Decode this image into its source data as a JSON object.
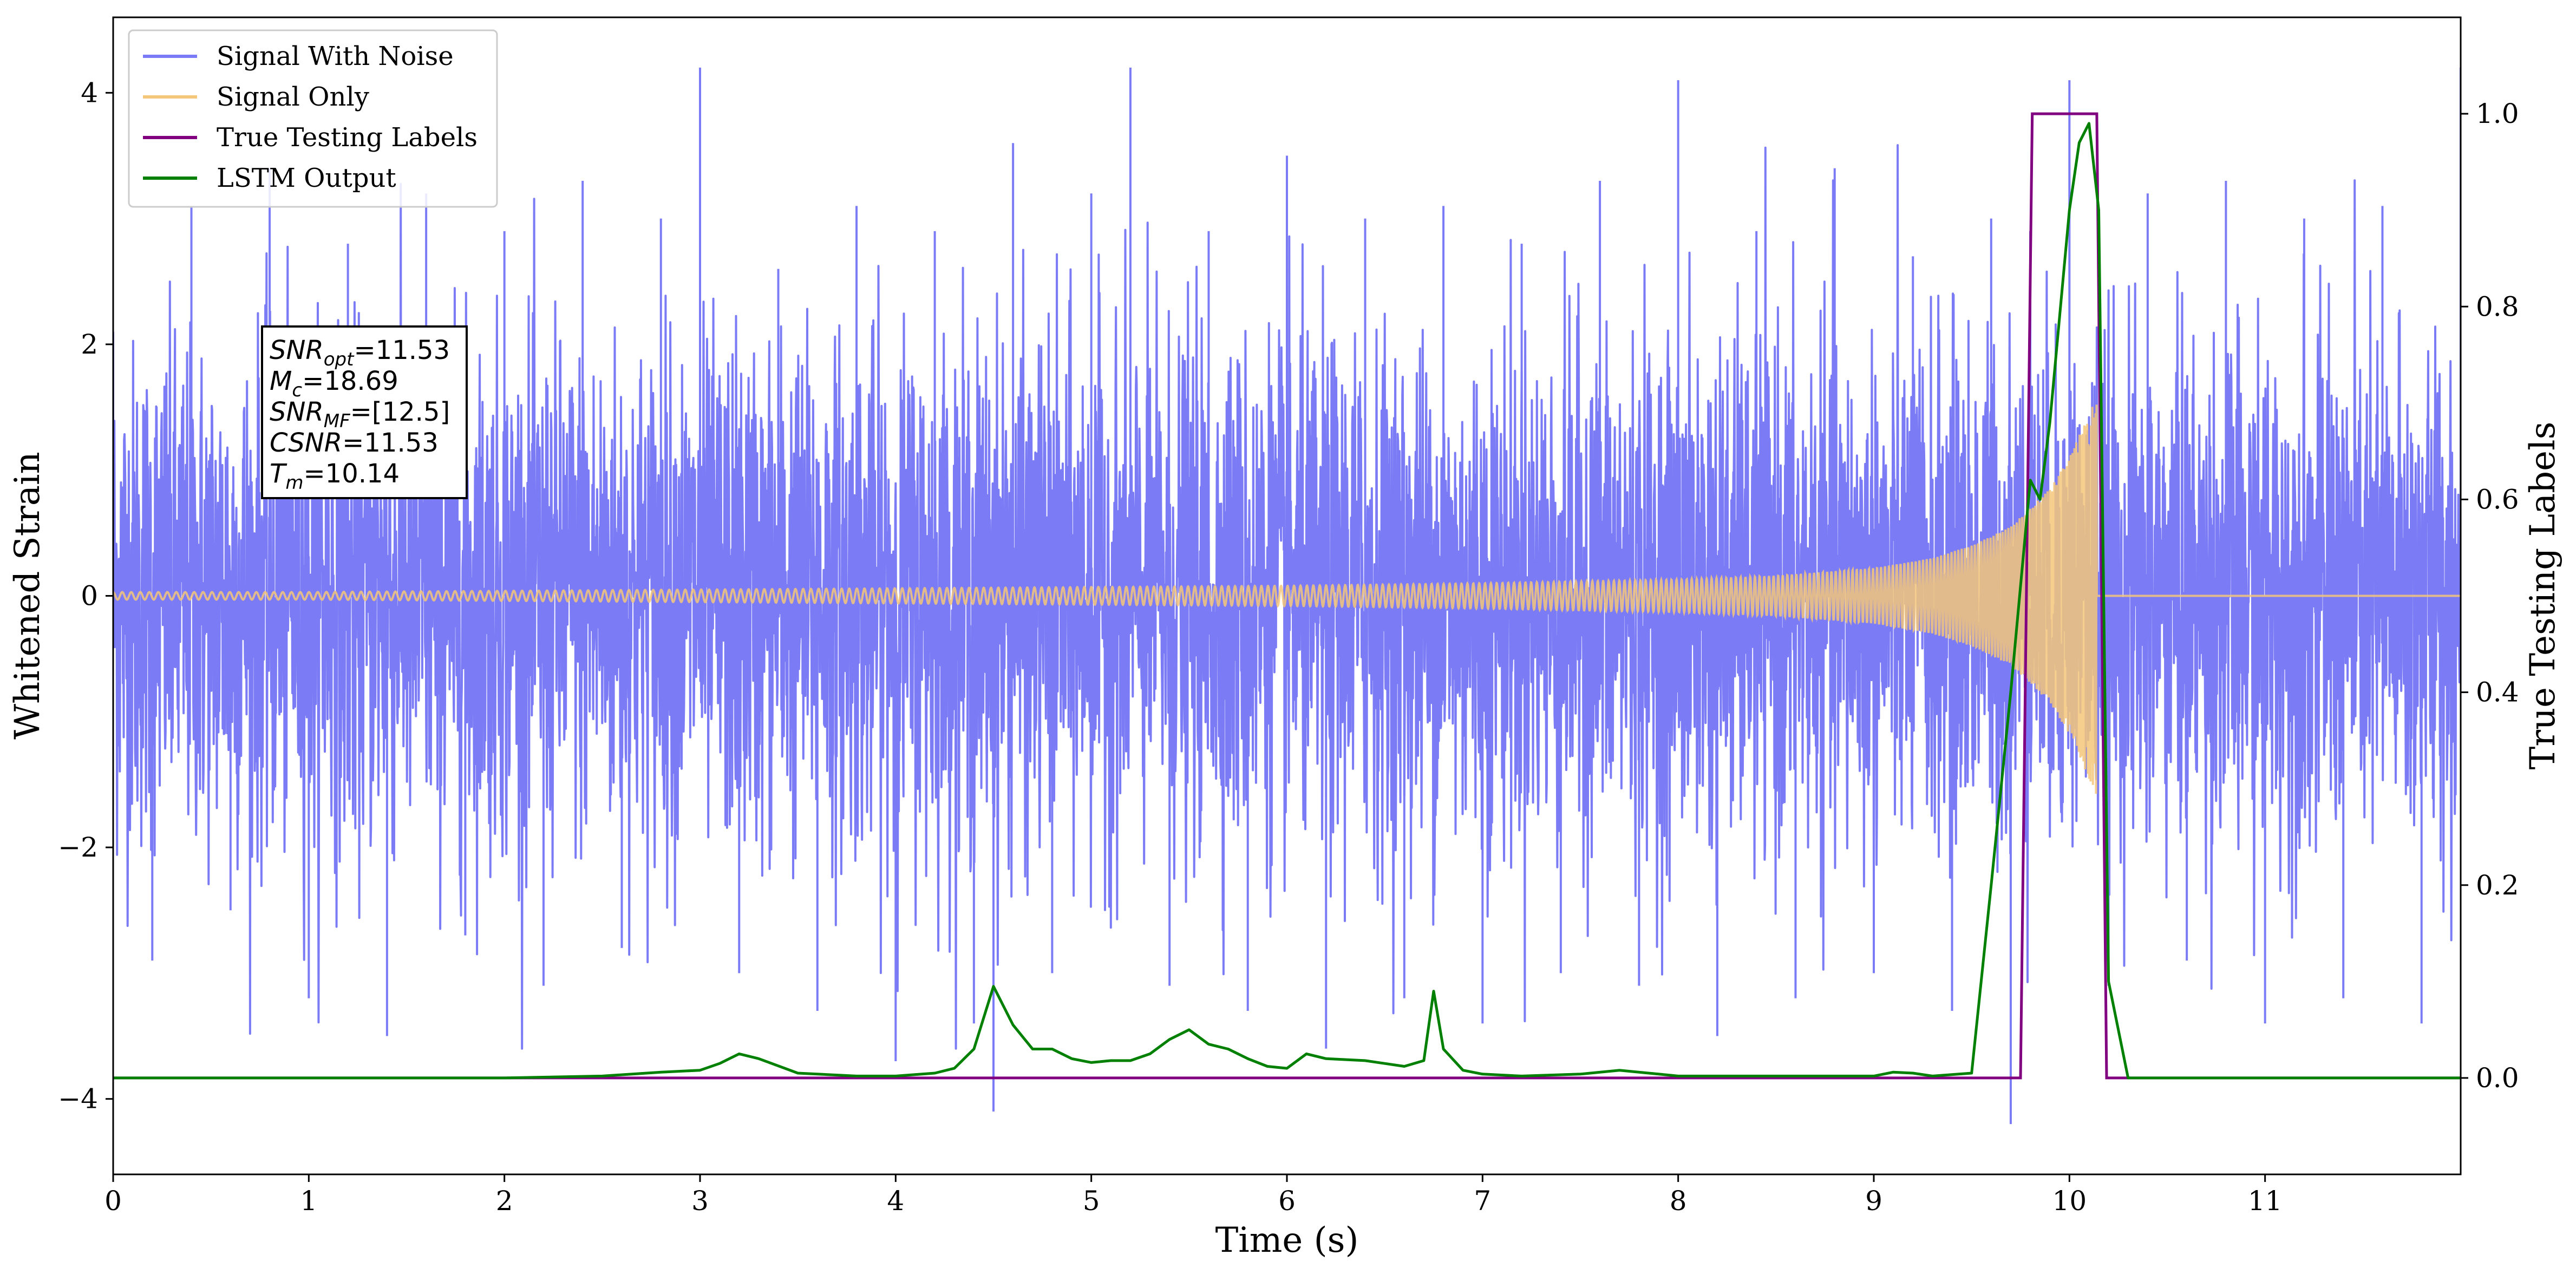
{
  "chart_data": {
    "type": "line",
    "xlabel": "Time (s)",
    "ylabel": "Whitened Strain",
    "y2label": "True Testing Labels",
    "xlim": [
      0,
      12
    ],
    "ylim": [
      -4.6,
      4.6
    ],
    "y2lim": [
      -0.1,
      1.1
    ],
    "x_ticks": [
      "0",
      "1",
      "2",
      "3",
      "4",
      "5",
      "6",
      "7",
      "8",
      "9",
      "10",
      "11"
    ],
    "y_ticks": [
      "−4",
      "−2",
      "0",
      "2",
      "4"
    ],
    "y2_ticks": [
      "0.0",
      "0.2",
      "0.4",
      "0.6",
      "0.8",
      "1.0"
    ],
    "grid": false,
    "legend_position": "top-left",
    "series": [
      {
        "name": "Signal With Noise",
        "axis": "left",
        "color": "#7b7bf5",
        "description_of_values": "dense noise, sample values approx",
        "x": [
          0.0,
          0.2,
          0.4,
          0.6,
          0.8,
          1.0,
          1.2,
          1.4,
          1.6,
          1.8,
          2.0,
          2.2,
          2.4,
          2.6,
          2.8,
          3.0,
          3.2,
          3.4,
          3.6,
          3.8,
          4.0,
          4.2,
          4.4,
          4.5,
          4.6,
          4.8,
          5.0,
          5.2,
          5.4,
          5.6,
          5.8,
          6.0,
          6.2,
          6.4,
          6.6,
          6.8,
          7.0,
          7.2,
          7.4,
          7.6,
          7.8,
          8.0,
          8.2,
          8.4,
          8.6,
          8.8,
          9.0,
          9.2,
          9.4,
          9.6,
          9.7,
          9.8,
          10.0,
          10.2,
          10.4,
          10.6,
          10.8,
          11.0,
          11.2,
          11.4,
          11.6,
          11.8,
          12.0
        ],
        "y": [
          2.1,
          -2.9,
          3.1,
          -2.5,
          3.4,
          -3.2,
          2.8,
          -3.5,
          3.2,
          -2.7,
          2.9,
          -3.1,
          3.3,
          -2.8,
          3.0,
          4.2,
          -3.0,
          2.6,
          -3.3,
          3.1,
          -3.7,
          2.9,
          -3.4,
          -4.1,
          3.6,
          -3.0,
          3.2,
          4.2,
          -3.1,
          2.9,
          -3.3,
          3.5,
          -3.6,
          3.0,
          -3.2,
          3.1,
          -3.4,
          2.8,
          -3.0,
          3.3,
          -3.1,
          4.1,
          -3.5,
          2.9,
          -3.2,
          3.4,
          -3.0,
          2.7,
          -3.3,
          3.0,
          -4.2,
          2.9,
          4.1,
          -3.1,
          3.2,
          -2.9,
          3.3,
          -3.4,
          3.0,
          -3.2,
          3.1,
          -3.4,
          4.2
        ]
      },
      {
        "name": "Signal Only",
        "axis": "left",
        "color": "#f5c77a",
        "x": [
          0.0,
          1.0,
          2.0,
          3.0,
          4.0,
          5.0,
          6.0,
          7.0,
          8.0,
          8.5,
          9.0,
          9.3,
          9.5,
          9.7,
          9.9,
          10.0,
          10.1,
          10.14,
          10.15,
          12.0
        ],
        "amplitude": [
          0.03,
          0.03,
          0.04,
          0.05,
          0.06,
          0.07,
          0.08,
          0.1,
          0.13,
          0.16,
          0.22,
          0.3,
          0.4,
          0.55,
          0.85,
          1.1,
          1.45,
          1.6,
          0.0,
          0.0
        ]
      },
      {
        "name": "True Testing Labels",
        "axis": "right",
        "color": "#800080",
        "x": [
          0.0,
          9.75,
          9.81,
          10.14,
          10.19,
          12.0
        ],
        "y": [
          0.0,
          0.0,
          1.0,
          1.0,
          0.0,
          0.0
        ]
      },
      {
        "name": "LSTM Output",
        "axis": "right",
        "color": "#008000",
        "x": [
          0.0,
          0.3,
          1.0,
          2.0,
          2.5,
          2.8,
          3.0,
          3.1,
          3.2,
          3.3,
          3.5,
          3.8,
          4.0,
          4.2,
          4.3,
          4.4,
          4.5,
          4.6,
          4.7,
          4.8,
          4.9,
          5.0,
          5.1,
          5.2,
          5.3,
          5.4,
          5.5,
          5.6,
          5.7,
          5.8,
          5.9,
          6.0,
          6.1,
          6.2,
          6.4,
          6.5,
          6.6,
          6.7,
          6.75,
          6.8,
          6.9,
          7.0,
          7.2,
          7.5,
          7.7,
          7.9,
          8.0,
          8.5,
          9.0,
          9.1,
          9.2,
          9.3,
          9.5,
          9.6,
          9.7,
          9.8,
          9.85,
          9.9,
          10.0,
          10.05,
          10.1,
          10.15,
          10.2,
          10.3,
          12.0
        ],
        "y": [
          0.0,
          0.0,
          0.0,
          0.0,
          0.002,
          0.006,
          0.008,
          0.015,
          0.025,
          0.02,
          0.005,
          0.002,
          0.002,
          0.005,
          0.01,
          0.03,
          0.095,
          0.055,
          0.03,
          0.03,
          0.02,
          0.016,
          0.018,
          0.018,
          0.025,
          0.04,
          0.05,
          0.035,
          0.03,
          0.02,
          0.012,
          0.01,
          0.025,
          0.02,
          0.018,
          0.015,
          0.012,
          0.018,
          0.09,
          0.03,
          0.008,
          0.004,
          0.002,
          0.004,
          0.008,
          0.004,
          0.002,
          0.002,
          0.002,
          0.006,
          0.005,
          0.002,
          0.005,
          0.2,
          0.4,
          0.62,
          0.6,
          0.68,
          0.9,
          0.97,
          0.99,
          0.9,
          0.1,
          0.0,
          0.0
        ]
      }
    ],
    "annotation_lines": [
      {
        "key": "SNR_opt",
        "main": "SNR",
        "sub": "opt",
        "value": "=11.53"
      },
      {
        "key": "M_c",
        "main": "M",
        "sub": "c",
        "value": "=18.69"
      },
      {
        "key": "SNR_MF",
        "main": "SNR",
        "sub": "MF",
        "value": "=[12.5]"
      },
      {
        "key": "CSNR",
        "main": "CSNR",
        "sub": "",
        "value": "=11.53"
      },
      {
        "key": "T_m",
        "main": "T",
        "sub": "m",
        "value": "=10.14"
      }
    ]
  }
}
